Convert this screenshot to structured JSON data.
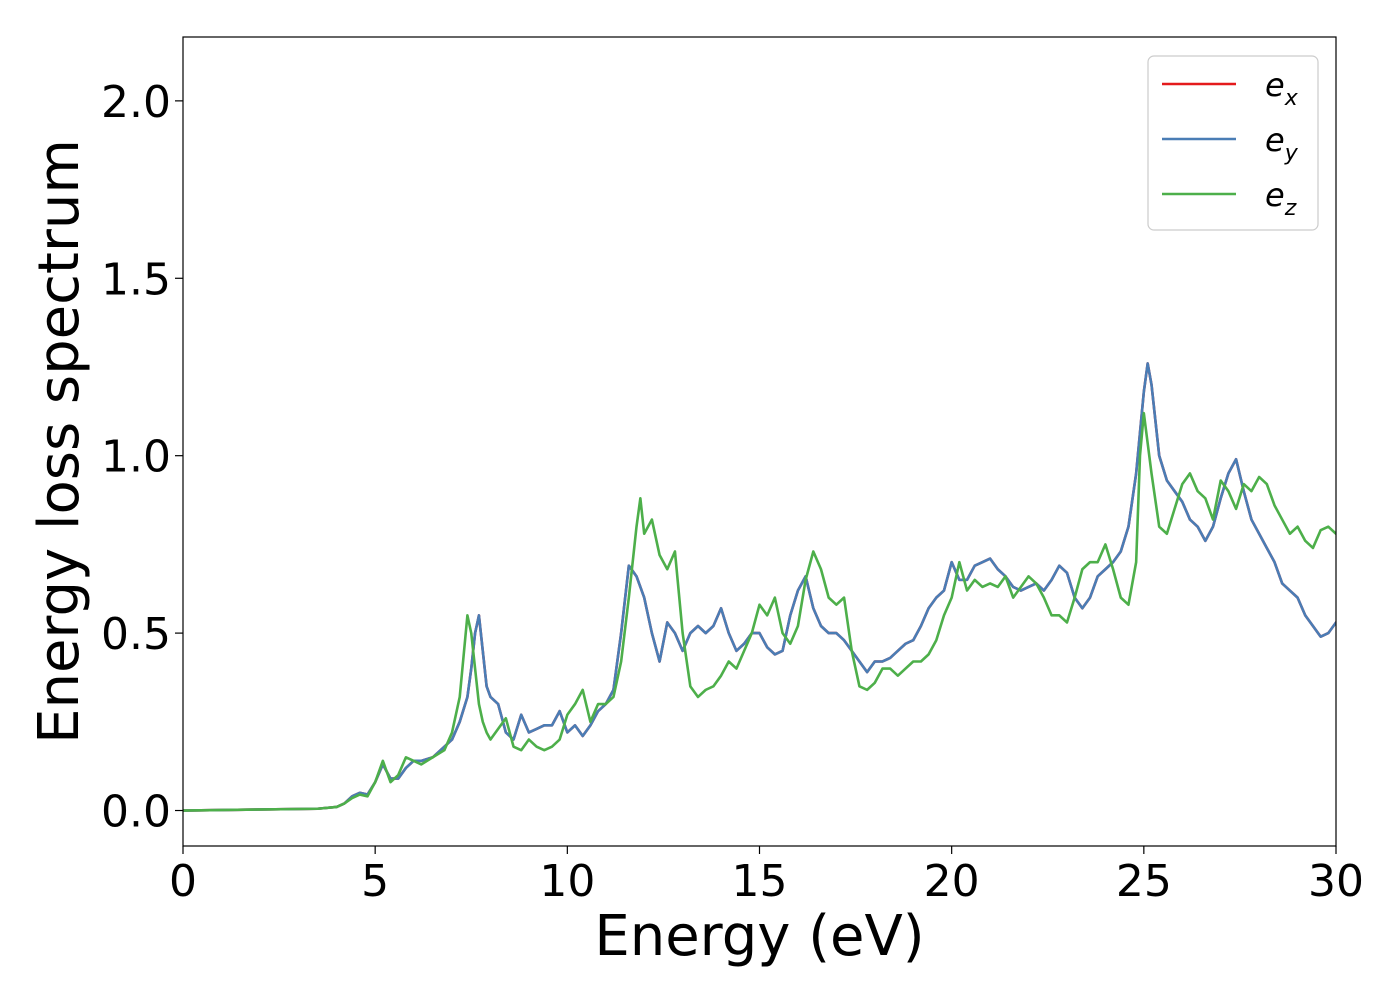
{
  "chart_data": {
    "type": "line",
    "title": "",
    "xlabel": "Energy (eV)",
    "ylabel": "Energy loss spectrum",
    "xlim": [
      0,
      30
    ],
    "ylim": [
      -0.1,
      2.18
    ],
    "xticks": [
      0,
      5,
      10,
      15,
      20,
      25,
      30
    ],
    "xtick_labels": [
      "0",
      "5",
      "10",
      "15",
      "20",
      "25",
      "30"
    ],
    "yticks": [
      0.0,
      0.5,
      1.0,
      1.5,
      2.0
    ],
    "ytick_labels": [
      "0.0",
      "0.5",
      "1.0",
      "1.5",
      "2.0"
    ],
    "grid": false,
    "legend_position": "top-right",
    "series": [
      {
        "name": "e_x",
        "label_base": "e",
        "label_sub": "x",
        "color": "#e41a1c",
        "x": [
          0,
          3.5,
          4.0,
          4.2,
          4.4,
          4.6,
          4.8,
          5.0,
          5.2,
          5.4,
          5.6,
          5.8,
          6.0,
          6.2,
          6.5,
          6.8,
          7.0,
          7.2,
          7.4,
          7.5,
          7.6,
          7.7,
          7.8,
          7.9,
          8.0,
          8.2,
          8.4,
          8.6,
          8.8,
          9.0,
          9.2,
          9.4,
          9.6,
          9.8,
          10.0,
          10.2,
          10.4,
          10.6,
          10.8,
          11.0,
          11.2,
          11.4,
          11.6,
          11.8,
          12.0,
          12.2,
          12.4,
          12.6,
          12.8,
          13.0,
          13.2,
          13.4,
          13.6,
          13.8,
          14.0,
          14.2,
          14.4,
          14.6,
          14.8,
          15.0,
          15.2,
          15.4,
          15.6,
          15.8,
          16.0,
          16.2,
          16.4,
          16.6,
          16.8,
          17.0,
          17.2,
          17.4,
          17.6,
          17.8,
          18.0,
          18.2,
          18.4,
          18.6,
          18.8,
          19.0,
          19.2,
          19.4,
          19.6,
          19.8,
          20.0,
          20.2,
          20.4,
          20.6,
          20.8,
          21.0,
          21.2,
          21.4,
          21.6,
          21.8,
          22.0,
          22.2,
          22.4,
          22.6,
          22.8,
          23.0,
          23.2,
          23.4,
          23.6,
          23.8,
          24.0,
          24.2,
          24.4,
          24.6,
          24.8,
          25.0,
          25.1,
          25.2,
          25.4,
          25.6,
          25.8,
          26.0,
          26.2,
          26.4,
          26.6,
          26.8,
          27.0,
          27.2,
          27.4,
          27.6,
          27.8,
          28.0,
          28.2,
          28.4,
          28.6,
          28.8,
          29.0,
          29.2,
          29.4,
          29.6,
          29.8,
          30.0
        ],
        "y": [
          0.0,
          0.005,
          0.01,
          0.02,
          0.04,
          0.05,
          0.045,
          0.08,
          0.13,
          0.09,
          0.09,
          0.12,
          0.14,
          0.14,
          0.15,
          0.18,
          0.2,
          0.25,
          0.32,
          0.4,
          0.5,
          0.55,
          0.45,
          0.35,
          0.32,
          0.3,
          0.22,
          0.2,
          0.27,
          0.22,
          0.23,
          0.24,
          0.24,
          0.28,
          0.22,
          0.24,
          0.21,
          0.24,
          0.28,
          0.3,
          0.34,
          0.5,
          0.69,
          0.66,
          0.6,
          0.5,
          0.42,
          0.53,
          0.5,
          0.45,
          0.5,
          0.52,
          0.5,
          0.52,
          0.57,
          0.5,
          0.45,
          0.47,
          0.5,
          0.5,
          0.46,
          0.44,
          0.45,
          0.55,
          0.62,
          0.66,
          0.57,
          0.52,
          0.5,
          0.5,
          0.48,
          0.45,
          0.42,
          0.39,
          0.42,
          0.42,
          0.43,
          0.45,
          0.47,
          0.48,
          0.52,
          0.57,
          0.6,
          0.62,
          0.7,
          0.65,
          0.65,
          0.69,
          0.7,
          0.71,
          0.68,
          0.66,
          0.63,
          0.62,
          0.63,
          0.64,
          0.62,
          0.65,
          0.69,
          0.67,
          0.6,
          0.57,
          0.6,
          0.66,
          0.68,
          0.7,
          0.73,
          0.8,
          0.95,
          1.18,
          1.26,
          1.2,
          1.0,
          0.93,
          0.9,
          0.87,
          0.82,
          0.8,
          0.76,
          0.8,
          0.88,
          0.95,
          0.99,
          0.9,
          0.82,
          0.78,
          0.74,
          0.7,
          0.64,
          0.62,
          0.6,
          0.55,
          0.52,
          0.49,
          0.5,
          0.53
        ]
      },
      {
        "name": "e_y",
        "label_base": "e",
        "label_sub": "y",
        "color": "#4a7db5",
        "x": [
          0,
          3.5,
          4.0,
          4.2,
          4.4,
          4.6,
          4.8,
          5.0,
          5.2,
          5.4,
          5.6,
          5.8,
          6.0,
          6.2,
          6.5,
          6.8,
          7.0,
          7.2,
          7.4,
          7.5,
          7.6,
          7.7,
          7.8,
          7.9,
          8.0,
          8.2,
          8.4,
          8.6,
          8.8,
          9.0,
          9.2,
          9.4,
          9.6,
          9.8,
          10.0,
          10.2,
          10.4,
          10.6,
          10.8,
          11.0,
          11.2,
          11.4,
          11.6,
          11.8,
          12.0,
          12.2,
          12.4,
          12.6,
          12.8,
          13.0,
          13.2,
          13.4,
          13.6,
          13.8,
          14.0,
          14.2,
          14.4,
          14.6,
          14.8,
          15.0,
          15.2,
          15.4,
          15.6,
          15.8,
          16.0,
          16.2,
          16.4,
          16.6,
          16.8,
          17.0,
          17.2,
          17.4,
          17.6,
          17.8,
          18.0,
          18.2,
          18.4,
          18.6,
          18.8,
          19.0,
          19.2,
          19.4,
          19.6,
          19.8,
          20.0,
          20.2,
          20.4,
          20.6,
          20.8,
          21.0,
          21.2,
          21.4,
          21.6,
          21.8,
          22.0,
          22.2,
          22.4,
          22.6,
          22.8,
          23.0,
          23.2,
          23.4,
          23.6,
          23.8,
          24.0,
          24.2,
          24.4,
          24.6,
          24.8,
          25.0,
          25.1,
          25.2,
          25.4,
          25.6,
          25.8,
          26.0,
          26.2,
          26.4,
          26.6,
          26.8,
          27.0,
          27.2,
          27.4,
          27.6,
          27.8,
          28.0,
          28.2,
          28.4,
          28.6,
          28.8,
          29.0,
          29.2,
          29.4,
          29.6,
          29.8,
          30.0
        ],
        "y": [
          0.0,
          0.005,
          0.01,
          0.02,
          0.04,
          0.05,
          0.045,
          0.08,
          0.13,
          0.09,
          0.09,
          0.12,
          0.14,
          0.14,
          0.15,
          0.18,
          0.2,
          0.25,
          0.32,
          0.4,
          0.5,
          0.55,
          0.45,
          0.35,
          0.32,
          0.3,
          0.22,
          0.2,
          0.27,
          0.22,
          0.23,
          0.24,
          0.24,
          0.28,
          0.22,
          0.24,
          0.21,
          0.24,
          0.28,
          0.3,
          0.34,
          0.5,
          0.69,
          0.66,
          0.6,
          0.5,
          0.42,
          0.53,
          0.5,
          0.45,
          0.5,
          0.52,
          0.5,
          0.52,
          0.57,
          0.5,
          0.45,
          0.47,
          0.5,
          0.5,
          0.46,
          0.44,
          0.45,
          0.55,
          0.62,
          0.66,
          0.57,
          0.52,
          0.5,
          0.5,
          0.48,
          0.45,
          0.42,
          0.39,
          0.42,
          0.42,
          0.43,
          0.45,
          0.47,
          0.48,
          0.52,
          0.57,
          0.6,
          0.62,
          0.7,
          0.65,
          0.65,
          0.69,
          0.7,
          0.71,
          0.68,
          0.66,
          0.63,
          0.62,
          0.63,
          0.64,
          0.62,
          0.65,
          0.69,
          0.67,
          0.6,
          0.57,
          0.6,
          0.66,
          0.68,
          0.7,
          0.73,
          0.8,
          0.95,
          1.18,
          1.26,
          1.2,
          1.0,
          0.93,
          0.9,
          0.87,
          0.82,
          0.8,
          0.76,
          0.8,
          0.88,
          0.95,
          0.99,
          0.9,
          0.82,
          0.78,
          0.74,
          0.7,
          0.64,
          0.62,
          0.6,
          0.55,
          0.52,
          0.49,
          0.5,
          0.53
        ]
      },
      {
        "name": "e_z",
        "label_base": "e",
        "label_sub": "z",
        "color": "#4daf4a",
        "x": [
          0,
          3.5,
          4.0,
          4.2,
          4.4,
          4.6,
          4.8,
          5.0,
          5.2,
          5.4,
          5.6,
          5.8,
          6.0,
          6.2,
          6.5,
          6.8,
          7.0,
          7.2,
          7.4,
          7.5,
          7.6,
          7.7,
          7.8,
          7.9,
          8.0,
          8.2,
          8.4,
          8.6,
          8.8,
          9.0,
          9.2,
          9.4,
          9.6,
          9.8,
          10.0,
          10.2,
          10.4,
          10.6,
          10.8,
          11.0,
          11.2,
          11.4,
          11.6,
          11.8,
          11.9,
          12.0,
          12.2,
          12.4,
          12.6,
          12.8,
          13.0,
          13.2,
          13.4,
          13.6,
          13.8,
          14.0,
          14.2,
          14.4,
          14.6,
          14.8,
          15.0,
          15.2,
          15.4,
          15.6,
          15.8,
          16.0,
          16.2,
          16.4,
          16.6,
          16.8,
          17.0,
          17.2,
          17.4,
          17.6,
          17.8,
          18.0,
          18.2,
          18.4,
          18.6,
          18.8,
          19.0,
          19.2,
          19.4,
          19.6,
          19.8,
          20.0,
          20.2,
          20.4,
          20.6,
          20.8,
          21.0,
          21.2,
          21.4,
          21.6,
          21.8,
          22.0,
          22.2,
          22.4,
          22.6,
          22.8,
          23.0,
          23.2,
          23.4,
          23.6,
          23.8,
          24.0,
          24.2,
          24.4,
          24.6,
          24.8,
          24.9,
          25.0,
          25.2,
          25.4,
          25.6,
          25.8,
          26.0,
          26.2,
          26.4,
          26.6,
          26.8,
          27.0,
          27.2,
          27.4,
          27.6,
          27.8,
          28.0,
          28.2,
          28.4,
          28.6,
          28.8,
          29.0,
          29.2,
          29.4,
          29.6,
          29.8,
          30.0
        ],
        "y": [
          0.0,
          0.005,
          0.01,
          0.02,
          0.035,
          0.045,
          0.04,
          0.08,
          0.14,
          0.08,
          0.1,
          0.15,
          0.14,
          0.13,
          0.15,
          0.17,
          0.22,
          0.32,
          0.55,
          0.5,
          0.4,
          0.3,
          0.25,
          0.22,
          0.2,
          0.23,
          0.26,
          0.18,
          0.17,
          0.2,
          0.18,
          0.17,
          0.18,
          0.2,
          0.27,
          0.3,
          0.34,
          0.25,
          0.3,
          0.3,
          0.32,
          0.42,
          0.6,
          0.8,
          0.88,
          0.78,
          0.82,
          0.72,
          0.68,
          0.73,
          0.5,
          0.35,
          0.32,
          0.34,
          0.35,
          0.38,
          0.42,
          0.4,
          0.45,
          0.5,
          0.58,
          0.55,
          0.6,
          0.5,
          0.47,
          0.52,
          0.65,
          0.73,
          0.68,
          0.6,
          0.58,
          0.6,
          0.45,
          0.35,
          0.34,
          0.36,
          0.4,
          0.4,
          0.38,
          0.4,
          0.42,
          0.42,
          0.44,
          0.48,
          0.55,
          0.6,
          0.7,
          0.62,
          0.65,
          0.63,
          0.64,
          0.63,
          0.66,
          0.6,
          0.63,
          0.66,
          0.64,
          0.6,
          0.55,
          0.55,
          0.53,
          0.6,
          0.68,
          0.7,
          0.7,
          0.75,
          0.68,
          0.6,
          0.58,
          0.7,
          1.0,
          1.12,
          0.95,
          0.8,
          0.78,
          0.85,
          0.92,
          0.95,
          0.9,
          0.88,
          0.82,
          0.93,
          0.9,
          0.85,
          0.92,
          0.9,
          0.94,
          0.92,
          0.86,
          0.82,
          0.78,
          0.8,
          0.76,
          0.74,
          0.79,
          0.8,
          0.78
        ]
      }
    ]
  }
}
